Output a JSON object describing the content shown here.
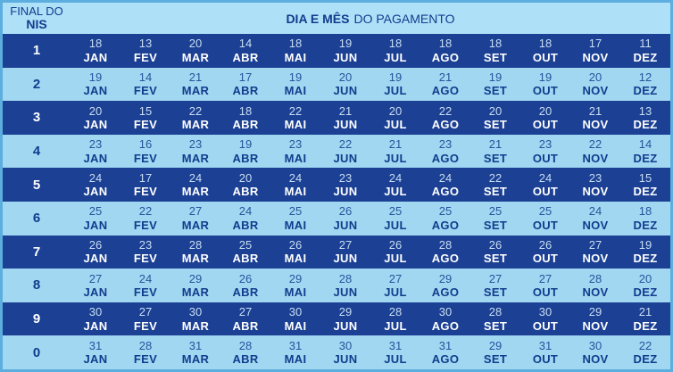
{
  "header": {
    "row_header_line1": "FINAL DO",
    "row_header_line2": "NIS",
    "title_bold": "DIA E MÊS",
    "title_regular": "DO PAGAMENTO"
  },
  "colors": {
    "dark_row": "#1b4094",
    "light_row": "#a2d7f1",
    "header_bg": "#aee0f8",
    "frame": "#5caede",
    "navy_text": "#123c8d",
    "pale_day_text": "#c9def2",
    "light_day_text": "#27549c",
    "white": "#ffffff"
  },
  "chart_data": {
    "type": "table",
    "title": "DIA E MÊS DO PAGAMENTO",
    "row_header": "FINAL DO NIS",
    "columns": [
      "JAN",
      "FEV",
      "MAR",
      "ABR",
      "MAI",
      "JUN",
      "JUL",
      "AGO",
      "SET",
      "OUT",
      "NOV",
      "DEZ"
    ],
    "rows": [
      {
        "nis": "1",
        "days": [
          18,
          13,
          20,
          14,
          18,
          19,
          18,
          18,
          18,
          18,
          17,
          11
        ]
      },
      {
        "nis": "2",
        "days": [
          19,
          14,
          21,
          17,
          19,
          20,
          19,
          21,
          19,
          19,
          20,
          12
        ]
      },
      {
        "nis": "3",
        "days": [
          20,
          15,
          22,
          18,
          22,
          21,
          20,
          22,
          20,
          20,
          21,
          13
        ]
      },
      {
        "nis": "4",
        "days": [
          23,
          16,
          23,
          19,
          23,
          22,
          21,
          23,
          21,
          23,
          22,
          14
        ]
      },
      {
        "nis": "5",
        "days": [
          24,
          17,
          24,
          20,
          24,
          23,
          24,
          24,
          22,
          24,
          23,
          15
        ]
      },
      {
        "nis": "6",
        "days": [
          25,
          22,
          27,
          24,
          25,
          26,
          25,
          25,
          25,
          25,
          24,
          18
        ]
      },
      {
        "nis": "7",
        "days": [
          26,
          23,
          28,
          25,
          26,
          27,
          26,
          28,
          26,
          26,
          27,
          19
        ]
      },
      {
        "nis": "8",
        "days": [
          27,
          24,
          29,
          26,
          29,
          28,
          27,
          29,
          27,
          27,
          28,
          20
        ]
      },
      {
        "nis": "9",
        "days": [
          30,
          27,
          30,
          27,
          30,
          29,
          28,
          30,
          28,
          30,
          29,
          21
        ]
      },
      {
        "nis": "0",
        "days": [
          31,
          28,
          31,
          28,
          31,
          30,
          31,
          31,
          29,
          31,
          30,
          22
        ]
      }
    ]
  }
}
